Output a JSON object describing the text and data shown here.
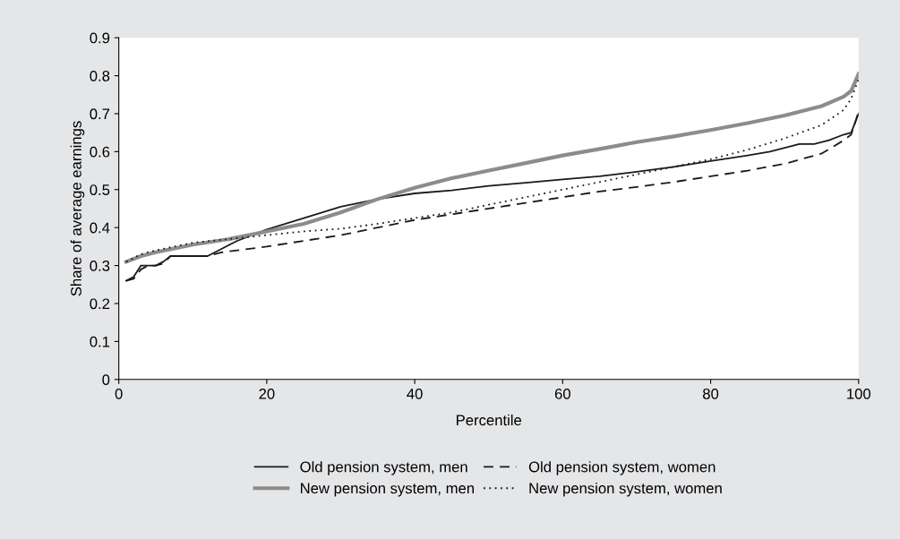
{
  "chart_data": {
    "type": "line",
    "xlabel": "Percentile",
    "ylabel": "Share of average earnings",
    "xlim": [
      0,
      100
    ],
    "xticks": [
      0,
      20,
      40,
      60,
      80,
      100
    ],
    "ylim": [
      0,
      0.9
    ],
    "yticks": [
      0,
      0.1,
      0.2,
      0.3,
      0.4,
      0.5,
      0.6,
      0.7,
      0.8,
      0.9
    ],
    "grid": false,
    "legend": "bottom",
    "series": [
      {
        "name": "Old pension system, men",
        "color": "#1a1a1a",
        "line_style": "solid",
        "x": [
          1,
          2,
          3,
          4,
          5,
          6,
          7,
          8,
          10,
          12,
          14,
          16,
          18,
          20,
          25,
          30,
          35,
          40,
          45,
          50,
          55,
          60,
          65,
          70,
          75,
          80,
          85,
          88,
          90,
          92,
          94,
          96,
          98,
          99,
          100
        ],
        "values": [
          0.26,
          0.27,
          0.3,
          0.3,
          0.3,
          0.31,
          0.325,
          0.325,
          0.325,
          0.325,
          0.345,
          0.365,
          0.38,
          0.395,
          0.425,
          0.455,
          0.475,
          0.49,
          0.498,
          0.51,
          0.518,
          0.527,
          0.535,
          0.547,
          0.56,
          0.575,
          0.59,
          0.6,
          0.61,
          0.62,
          0.62,
          0.63,
          0.645,
          0.65,
          0.7
        ]
      },
      {
        "name": "New pension system, men",
        "color": "#8c8c8c",
        "line_style": "solid",
        "x": [
          1,
          3,
          5,
          10,
          15,
          20,
          25,
          30,
          35,
          40,
          45,
          50,
          55,
          60,
          65,
          70,
          75,
          80,
          85,
          90,
          95,
          98,
          99,
          100
        ],
        "values": [
          0.31,
          0.325,
          0.335,
          0.355,
          0.37,
          0.39,
          0.41,
          0.44,
          0.475,
          0.505,
          0.53,
          0.55,
          0.57,
          0.59,
          0.607,
          0.625,
          0.64,
          0.657,
          0.675,
          0.695,
          0.72,
          0.745,
          0.76,
          0.805
        ]
      },
      {
        "name": "Old pension system, women",
        "color": "#1a1a1a",
        "line_style": "dashed",
        "x": [
          1,
          2,
          3,
          4,
          5,
          6,
          7,
          12,
          14,
          20,
          25,
          30,
          35,
          40,
          45,
          50,
          55,
          60,
          65,
          70,
          75,
          80,
          85,
          90,
          95,
          98,
          99,
          100
        ],
        "values": [
          0.26,
          0.265,
          0.29,
          0.3,
          0.3,
          0.305,
          0.325,
          0.325,
          0.335,
          0.35,
          0.365,
          0.38,
          0.4,
          0.42,
          0.435,
          0.45,
          0.465,
          0.48,
          0.495,
          0.507,
          0.52,
          0.535,
          0.55,
          0.568,
          0.595,
          0.63,
          0.645,
          0.705
        ]
      },
      {
        "name": "New pension system, women",
        "color": "#1a1a1a",
        "line_style": "dotted",
        "x": [
          1,
          3,
          5,
          10,
          15,
          20,
          25,
          30,
          35,
          40,
          45,
          50,
          55,
          60,
          65,
          70,
          75,
          80,
          85,
          90,
          95,
          98,
          99,
          100
        ],
        "values": [
          0.31,
          0.33,
          0.34,
          0.36,
          0.37,
          0.38,
          0.39,
          0.397,
          0.41,
          0.425,
          0.44,
          0.46,
          0.48,
          0.5,
          0.52,
          0.54,
          0.56,
          0.58,
          0.605,
          0.635,
          0.67,
          0.71,
          0.74,
          0.79
        ]
      }
    ]
  }
}
